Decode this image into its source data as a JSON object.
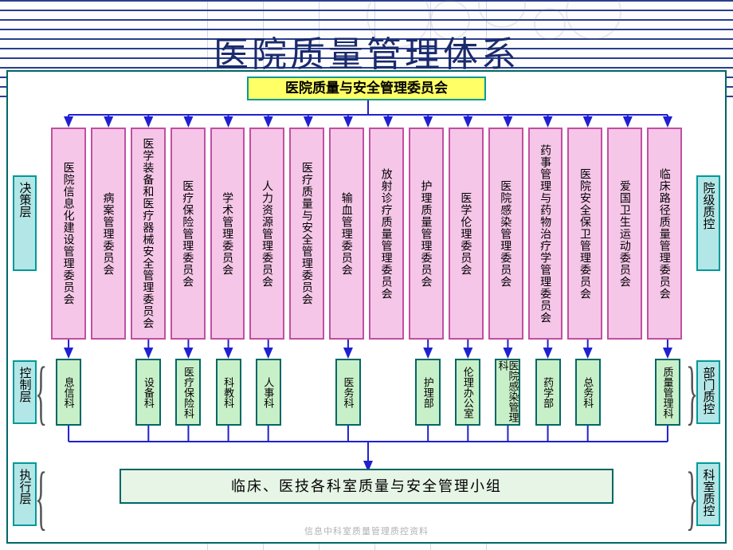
{
  "title": "医院质量管理体系",
  "top_committee": "医院质量与安全管理委员会",
  "bottom_group": "临床、医技各科室质量与安全管理小组",
  "footer": "信息中科室质量管理质控资料",
  "colors": {
    "border_teal": "#009999",
    "bg_yellow": "#ffff66",
    "bg_pink": "#f5c6e8",
    "border_pink": "#c050a0",
    "bg_cyan": "#b3e6e6",
    "bg_green": "#c8f0c8",
    "bg_lightgreen": "#e6f5e6",
    "arrow": "#2020d0",
    "title_color": "#1a2a6c"
  },
  "left_labels": {
    "decision": "决策层",
    "control": "控制层",
    "execute": "执行层"
  },
  "right_labels": {
    "hospital": "院级质控",
    "dept": "部门质控",
    "room": "科室质控"
  },
  "committees": [
    "医院信息化建设管理委员会",
    "病案管理委员会",
    "医学装备和医疗器械安全管理委员会",
    "医疗保险管理委员会",
    "学术管理委员会",
    "人力资源管理委员会",
    "医疗质量与安全管理委员会",
    "输血管理委员会",
    "放射诊疗质量管理委员会",
    "护理质量管理委员会",
    "医学伦理委员会",
    "医院感染管理委员会",
    "药事管理与药物治疗学管理委员会",
    "医院安全保卫管理委员会",
    "爱国卫生运动委员会",
    "临床路径质量管理委员会"
  ],
  "departments": [
    {
      "label": "息信科",
      "col": 0
    },
    {
      "label": "设备科",
      "col": 2
    },
    {
      "label": "医疗保险科",
      "col": 3
    },
    {
      "label": "科教科",
      "col": 4
    },
    {
      "label": "人事科",
      "col": 5
    },
    {
      "label": "医务科",
      "col": 7
    },
    {
      "label": "护理部",
      "col": 9
    },
    {
      "label": "伦理办公室",
      "col": 10
    },
    {
      "label": "医院感染管理科",
      "col": 11
    },
    {
      "label": "药学部",
      "col": 12
    },
    {
      "label": "总务科",
      "col": 13
    },
    {
      "label": "质量管理科",
      "col": 15
    }
  ],
  "decorative_lines_y": [
    0,
    12,
    24,
    36,
    48,
    60,
    72,
    84,
    96,
    108,
    120
  ],
  "vlines_x": [
    260,
    330,
    400,
    470,
    540,
    610
  ]
}
